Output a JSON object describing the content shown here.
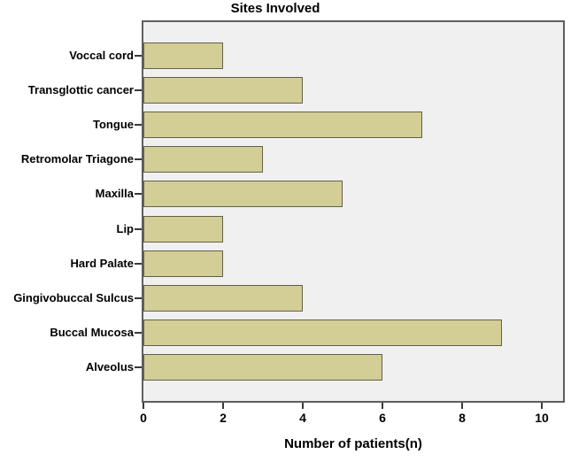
{
  "chart_data": {
    "type": "bar",
    "orientation": "horizontal",
    "title": "Sites Involved",
    "xlabel": "Number of patients(n)",
    "ylabel": "",
    "categories": [
      "Voccal cord",
      "Transglottic cancer",
      "Tongue",
      "Retromolar Triagone",
      "Maxilla",
      "Lip",
      "Hard Palate",
      "Gingivobuccal Sulcus",
      "Buccal Mucosa",
      "Alveolus"
    ],
    "values": [
      2,
      4,
      7,
      3,
      5,
      2,
      2,
      4,
      9,
      6
    ],
    "xlim": [
      0,
      10.5
    ],
    "xticks": [
      0,
      2,
      4,
      6,
      8,
      10
    ],
    "grid": false,
    "legend": null,
    "colors": {
      "bar_fill": "#D3CD96",
      "bar_border": "#62614A",
      "plot_bg": "#F0F0F0",
      "plot_border": "#5E5E5E",
      "text": "#000000",
      "page_bg": "#FFFFFF"
    }
  }
}
